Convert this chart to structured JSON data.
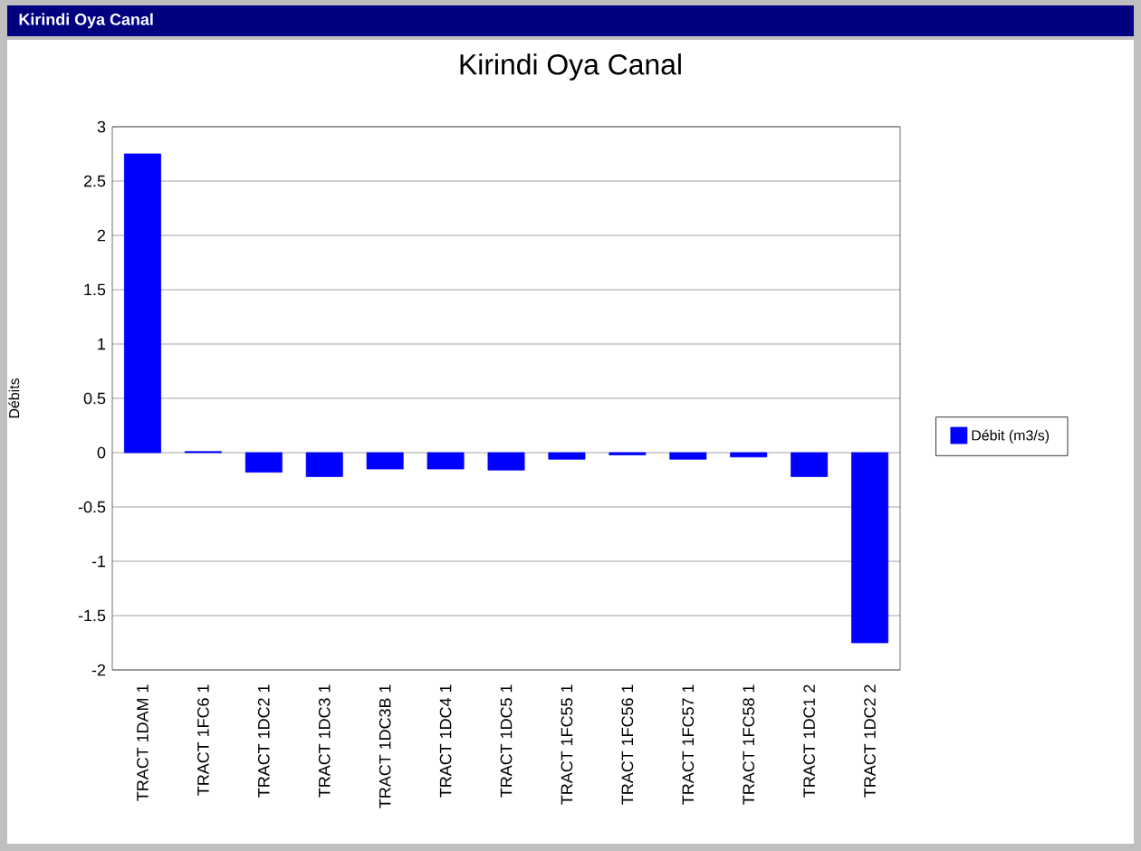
{
  "chart_data": {
    "type": "bar",
    "title": "Kirindi Oya Canal",
    "ylabel": "Débits",
    "annotations": [
      "Kirindi Oya Canal"
    ],
    "categories": [
      "TRACT 1DAM 1",
      "TRACT 1FC6 1",
      "TRACT 1DC2 1",
      "TRACT 1DC3 1",
      "TRACT 1DC3B 1",
      "TRACT 1DC4 1",
      "TRACT 1DC5 1",
      "TRACT 1FC55 1",
      "TRACT 1FC56 1",
      "TRACT 1FC57 1",
      "TRACT 1FC58 1",
      "TRACT 1DC1 2",
      "TRACT 1DC2 2"
    ],
    "series": [
      {
        "name": "Débit (m3/s)",
        "color": "#0000ff",
        "values": [
          2.75,
          0.01,
          -0.18,
          -0.22,
          -0.15,
          -0.15,
          -0.16,
          -0.06,
          -0.02,
          -0.06,
          -0.04,
          -0.22,
          -1.75
        ]
      }
    ],
    "ylim": [
      -2,
      3
    ],
    "yticks": [
      -2,
      -1.5,
      -1,
      -0.5,
      0,
      0.5,
      1,
      1.5,
      2,
      2.5,
      3
    ],
    "grid": "y",
    "legend": "right"
  }
}
